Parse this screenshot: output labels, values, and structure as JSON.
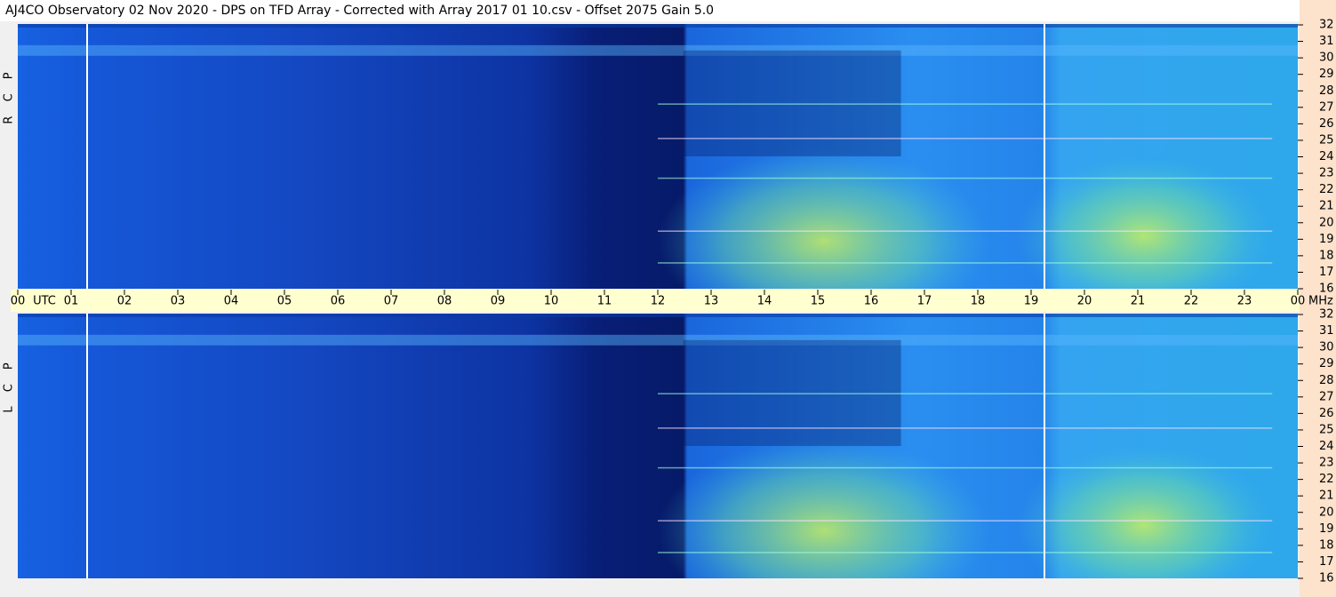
{
  "chart_data": {
    "type": "spectrogram",
    "title": "AJ4CO Observatory  02 Nov 2020  -  DPS on TFD Array  -  Corrected with Array 2017 01 10.csv  -  Offset 2075  Gain 5.0",
    "x_unit_label": "UTC",
    "y_unit_label": "MHz",
    "xlim": [
      0,
      24
    ],
    "xticks": [
      {
        "value": 0,
        "label": "00"
      },
      {
        "value": 1,
        "label": "01"
      },
      {
        "value": 2,
        "label": "02"
      },
      {
        "value": 3,
        "label": "03"
      },
      {
        "value": 4,
        "label": "04"
      },
      {
        "value": 5,
        "label": "05"
      },
      {
        "value": 6,
        "label": "06"
      },
      {
        "value": 7,
        "label": "07"
      },
      {
        "value": 8,
        "label": "08"
      },
      {
        "value": 9,
        "label": "09"
      },
      10,
      11,
      12,
      13,
      14,
      15,
      16,
      17,
      18,
      19,
      20,
      21,
      22,
      23,
      {
        "value": 24,
        "label": "00"
      }
    ],
    "ylim": [
      16,
      32
    ],
    "yticks": [
      16,
      17,
      18,
      19,
      20,
      21,
      22,
      23,
      24,
      25,
      26,
      27,
      28,
      29,
      30,
      31,
      32
    ],
    "panels": [
      {
        "label": "R C P"
      },
      {
        "label": "L C P"
      }
    ]
  }
}
